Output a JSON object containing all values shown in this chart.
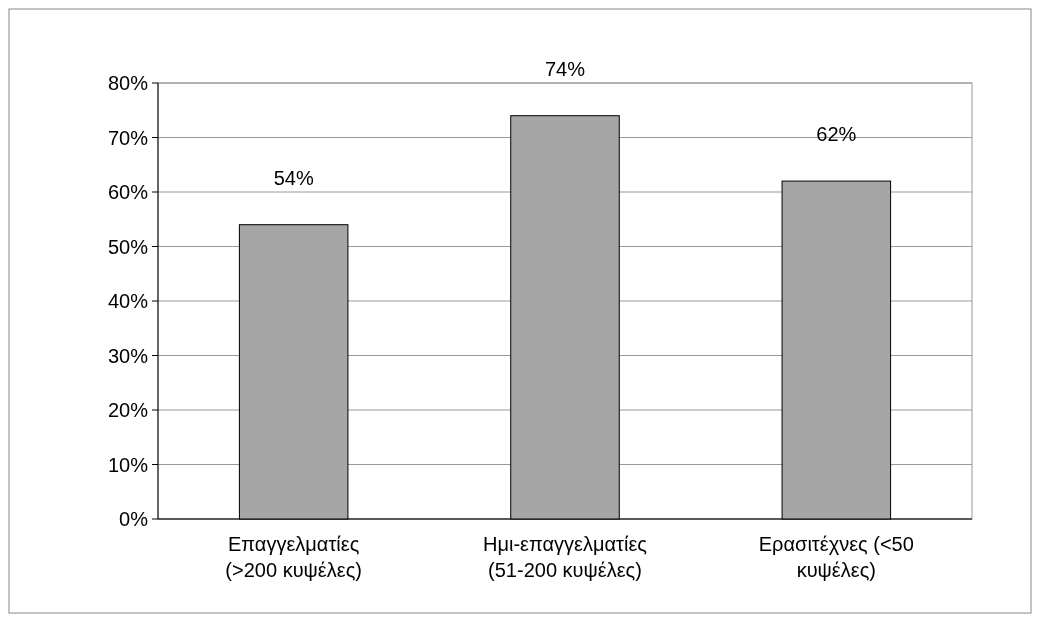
{
  "chart_data": {
    "type": "bar",
    "categories": [
      "Επαγγελματίες (>200 κυψέλες)",
      "Ημι-επαγγελματίες (51-200 κυψέλες)",
      "Ερασιτέχνες (<50 κυψέλες)"
    ],
    "values": [
      54,
      74,
      62
    ],
    "color": "#a6a6a6",
    "value_labels": [
      "54%",
      "74%",
      "62%"
    ],
    "ylim": [
      0,
      80
    ],
    "yticks": [
      {
        "value": 0,
        "label": "0%"
      },
      {
        "value": 10,
        "label": "10%"
      },
      {
        "value": 20,
        "label": "20%"
      },
      {
        "value": 30,
        "label": "30%"
      },
      {
        "value": 40,
        "label": "40%"
      },
      {
        "value": 50,
        "label": "50%"
      },
      {
        "value": 60,
        "label": "60%"
      },
      {
        "value": 70,
        "label": "70%"
      },
      {
        "value": 80,
        "label": "80%"
      }
    ],
    "grid": "y"
  }
}
